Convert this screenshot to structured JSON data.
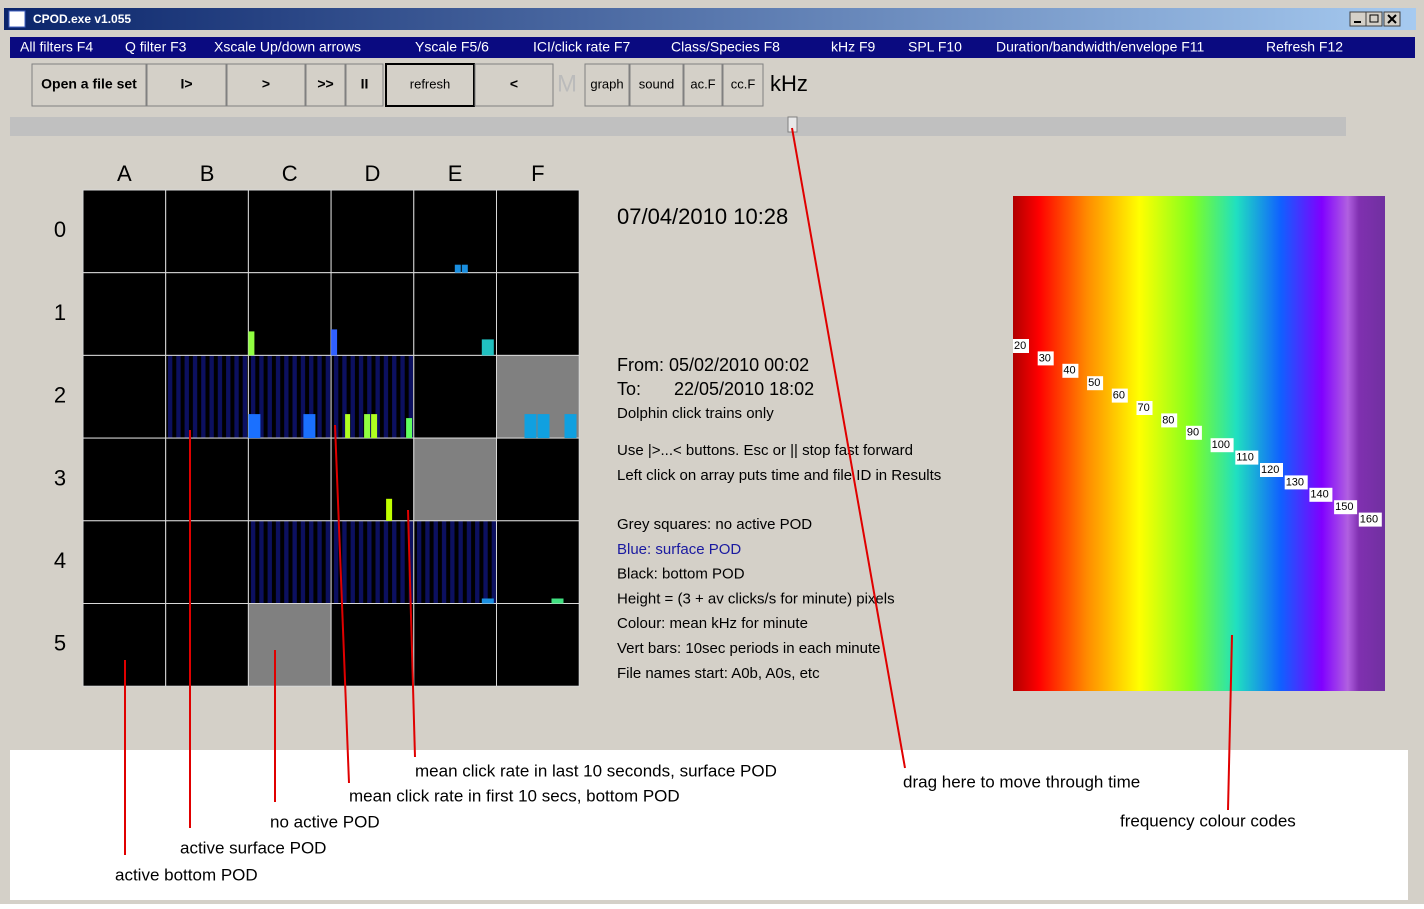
{
  "window": {
    "title": "CPOD.exe v1.055"
  },
  "menu": [
    "All filters F4",
    "Q filter F3",
    "Xscale Up/down arrows",
    "Yscale F5/6",
    "ICI/click rate F7",
    "Class/Species F8",
    "kHz F9",
    "SPL F10",
    "Duration/bandwidth/envelope F11",
    "Refresh  F12"
  ],
  "toolbar": [
    "Open a file set",
    "I>",
    ">",
    ">>",
    "II",
    "refresh",
    "<",
    "M",
    "graph",
    "sound",
    "ac.F",
    "cc.F",
    "kHz"
  ],
  "grid": {
    "columns": [
      "A",
      "B",
      "C",
      "D",
      "E",
      "F"
    ],
    "rows": [
      "0",
      "1",
      "2",
      "3",
      "4",
      "5"
    ]
  },
  "info": {
    "datetime": "07/04/2010 10:28",
    "from": "From: 05/02/2010 00:02",
    "to_label": "To:",
    "to": "22/05/2010 18:02",
    "filter": "Dolphin click trains only",
    "help": [
      "Use |>...< buttons. Esc or || stop fast forward",
      "Left click on array puts time and file ID in Results"
    ],
    "legend": [
      "Grey squares: no active POD",
      "Blue: surface POD",
      "Black: bottom POD",
      "Height = (3 + av clicks/s for minute) pixels",
      "Colour: mean kHz for minute",
      "Vert bars: 10sec periods in each minute",
      "File names start: A0b, A0s, etc"
    ]
  },
  "colour_scale": [
    20,
    30,
    40,
    50,
    60,
    70,
    80,
    90,
    100,
    110,
    120,
    130,
    140,
    150,
    160
  ],
  "annotations": [
    "mean click rate in last 10 seconds, surface POD",
    "mean click rate in first 10 secs, bottom POD",
    "no active POD",
    "active surface POD",
    "active bottom POD",
    "drag here to move through time",
    "frequency colour codes"
  ]
}
